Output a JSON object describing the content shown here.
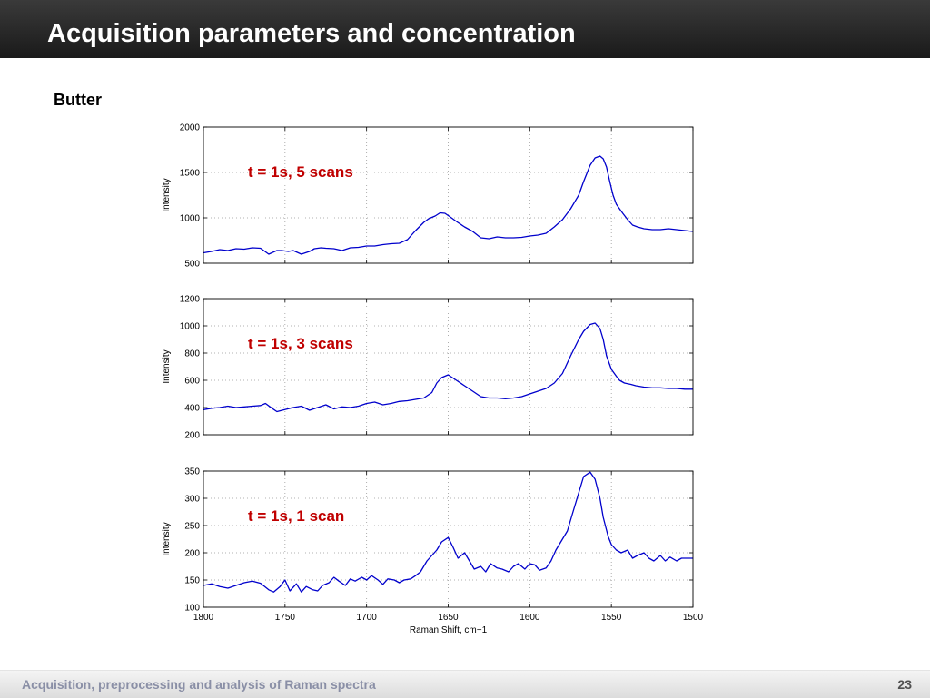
{
  "slide": {
    "title": "Acquisition parameters and concentration",
    "subtitle": "Butter",
    "footer": "Acquisition, preprocessing and analysis of Raman spectra",
    "page_number": "23"
  },
  "colors": {
    "header_background": "#222222",
    "line": "#0000cc",
    "annotation": "#c00000",
    "grid": "#999999"
  },
  "chart_data": [
    {
      "type": "line",
      "annotation": "t = 1s, 5 scans",
      "ylabel": "Intensity",
      "xlabel": "",
      "xlim": [
        1800,
        1500
      ],
      "ylim": [
        500,
        2000
      ],
      "xticks": [
        1800,
        1750,
        1700,
        1650,
        1600,
        1550,
        1500
      ],
      "yticks": [
        500,
        1000,
        1500,
        2000
      ],
      "show_xtick_labels": false,
      "grid": true,
      "series": [
        {
          "x": [
            1800,
            1795,
            1790,
            1785,
            1780,
            1775,
            1770,
            1765,
            1760,
            1755,
            1752,
            1748,
            1745,
            1740,
            1735,
            1732,
            1728,
            1725,
            1720,
            1715,
            1710,
            1705,
            1700,
            1695,
            1690,
            1685,
            1680,
            1675,
            1670,
            1665,
            1662,
            1658,
            1655,
            1652,
            1648,
            1645,
            1640,
            1635,
            1630,
            1625,
            1620,
            1615,
            1610,
            1605,
            1600,
            1595,
            1590,
            1585,
            1580,
            1575,
            1570,
            1567,
            1563,
            1560,
            1557,
            1555,
            1553,
            1551,
            1549,
            1547,
            1545,
            1543,
            1540,
            1537,
            1534,
            1530,
            1525,
            1520,
            1515,
            1510,
            1505,
            1500
          ],
          "y": [
            615,
            630,
            650,
            640,
            660,
            655,
            670,
            665,
            600,
            640,
            640,
            630,
            640,
            600,
            630,
            660,
            670,
            665,
            660,
            640,
            670,
            675,
            690,
            690,
            705,
            715,
            720,
            760,
            860,
            950,
            990,
            1020,
            1055,
            1050,
            1000,
            960,
            900,
            850,
            780,
            770,
            790,
            780,
            780,
            785,
            800,
            810,
            830,
            900,
            980,
            1100,
            1250,
            1400,
            1580,
            1660,
            1680,
            1650,
            1560,
            1400,
            1250,
            1150,
            1100,
            1050,
            980,
            920,
            900,
            880,
            870,
            870,
            880,
            870,
            860,
            850
          ]
        }
      ]
    },
    {
      "type": "line",
      "annotation": "t = 1s, 3 scans",
      "ylabel": "Intensity",
      "xlabel": "",
      "xlim": [
        1800,
        1500
      ],
      "ylim": [
        200,
        1200
      ],
      "xticks": [
        1800,
        1750,
        1700,
        1650,
        1600,
        1550,
        1500
      ],
      "yticks": [
        200,
        400,
        600,
        800,
        1000,
        1200
      ],
      "show_xtick_labels": false,
      "grid": true,
      "series": [
        {
          "x": [
            1800,
            1795,
            1790,
            1785,
            1780,
            1775,
            1770,
            1765,
            1762,
            1758,
            1755,
            1750,
            1745,
            1740,
            1735,
            1730,
            1725,
            1720,
            1715,
            1710,
            1705,
            1700,
            1695,
            1690,
            1685,
            1680,
            1675,
            1670,
            1665,
            1660,
            1657,
            1654,
            1650,
            1645,
            1640,
            1635,
            1630,
            1625,
            1620,
            1615,
            1610,
            1605,
            1600,
            1595,
            1590,
            1585,
            1580,
            1575,
            1570,
            1567,
            1563,
            1560,
            1557,
            1555,
            1553,
            1550,
            1547,
            1545,
            1542,
            1538,
            1535,
            1530,
            1525,
            1520,
            1515,
            1510,
            1505,
            1500
          ],
          "y": [
            385,
            395,
            400,
            410,
            400,
            405,
            410,
            415,
            430,
            395,
            370,
            385,
            400,
            410,
            380,
            400,
            420,
            390,
            405,
            400,
            410,
            430,
            440,
            420,
            430,
            445,
            450,
            460,
            470,
            510,
            580,
            620,
            640,
            600,
            560,
            520,
            480,
            470,
            470,
            465,
            470,
            480,
            500,
            520,
            540,
            580,
            650,
            780,
            900,
            960,
            1010,
            1020,
            980,
            900,
            780,
            680,
            630,
            600,
            580,
            570,
            560,
            550,
            545,
            545,
            540,
            540,
            535,
            535
          ]
        }
      ]
    },
    {
      "type": "line",
      "annotation": "t = 1s, 1 scan",
      "ylabel": "Intensity",
      "xlabel": "Raman Shift, cm−1",
      "xlim": [
        1800,
        1500
      ],
      "ylim": [
        100,
        350
      ],
      "xticks": [
        1800,
        1750,
        1700,
        1650,
        1600,
        1550,
        1500
      ],
      "yticks": [
        100,
        150,
        200,
        250,
        300,
        350
      ],
      "show_xtick_labels": true,
      "grid": true,
      "series": [
        {
          "x": [
            1800,
            1795,
            1790,
            1785,
            1780,
            1775,
            1770,
            1765,
            1760,
            1757,
            1753,
            1750,
            1747,
            1743,
            1740,
            1737,
            1733,
            1730,
            1727,
            1723,
            1720,
            1717,
            1713,
            1710,
            1707,
            1703,
            1700,
            1697,
            1693,
            1690,
            1687,
            1683,
            1680,
            1677,
            1673,
            1670,
            1667,
            1663,
            1660,
            1657,
            1654,
            1650,
            1647,
            1644,
            1640,
            1637,
            1634,
            1630,
            1627,
            1624,
            1620,
            1617,
            1613,
            1610,
            1607,
            1603,
            1600,
            1597,
            1594,
            1590,
            1587,
            1584,
            1580,
            1577,
            1574,
            1570,
            1567,
            1563,
            1560,
            1557,
            1555,
            1552,
            1550,
            1547,
            1544,
            1540,
            1537,
            1534,
            1530,
            1527,
            1524,
            1520,
            1517,
            1514,
            1510,
            1507,
            1504,
            1500
          ],
          "y": [
            140,
            143,
            138,
            135,
            140,
            145,
            148,
            144,
            132,
            128,
            138,
            150,
            130,
            143,
            128,
            138,
            132,
            130,
            140,
            145,
            155,
            148,
            140,
            152,
            148,
            155,
            150,
            158,
            150,
            142,
            152,
            150,
            145,
            150,
            152,
            158,
            165,
            185,
            195,
            205,
            220,
            228,
            210,
            190,
            200,
            185,
            170,
            175,
            165,
            180,
            172,
            170,
            165,
            175,
            180,
            170,
            180,
            178,
            168,
            172,
            185,
            205,
            225,
            240,
            270,
            310,
            340,
            348,
            335,
            300,
            265,
            230,
            215,
            205,
            200,
            205,
            190,
            195,
            200,
            190,
            185,
            195,
            185,
            192,
            185,
            190,
            190,
            190
          ]
        }
      ]
    }
  ]
}
